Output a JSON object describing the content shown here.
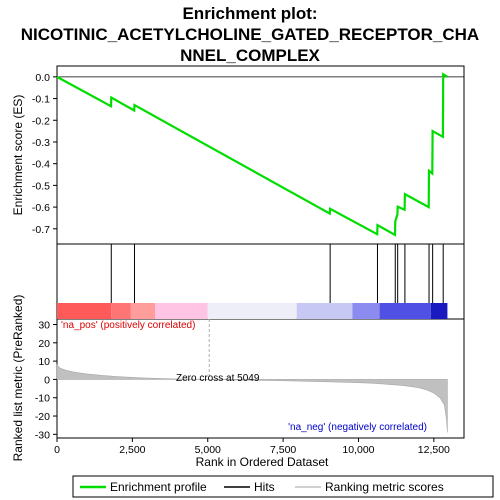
{
  "chart_data": {
    "type": "line",
    "title_lines": [
      "Enrichment plot:",
      "NICOTINIC_ACETYLCHOLINE_GATED_RECEPTOR_CHA",
      "NNEL_COMPLEX"
    ],
    "xlabel": "Rank in Ordered Dataset",
    "xlim": [
      0,
      13500
    ],
    "x_ticks": [
      0,
      2500,
      5000,
      7500,
      10000,
      12500
    ],
    "x_tick_labels": [
      "0",
      "2,500",
      "5,000",
      "7,500",
      "10,000",
      "12,500"
    ],
    "es_panel": {
      "ylabel": "Enrichment score (ES)",
      "ylim": [
        -0.77,
        0.05
      ],
      "y_ticks": [
        0.0,
        -0.1,
        -0.2,
        -0.3,
        -0.4,
        -0.5,
        -0.6,
        -0.7
      ],
      "y_tick_labels": [
        "0.0",
        "-0.1",
        "-0.2",
        "-0.3",
        "-0.4",
        "-0.5",
        "-0.6",
        "-0.7"
      ],
      "series_color": "#00dd00",
      "points": [
        [
          0,
          0.0
        ],
        [
          1790,
          -0.135
        ],
        [
          1800,
          -0.095
        ],
        [
          2560,
          -0.155
        ],
        [
          2570,
          -0.13
        ],
        [
          9050,
          -0.63
        ],
        [
          9060,
          -0.608
        ],
        [
          10620,
          -0.725
        ],
        [
          10630,
          -0.683
        ],
        [
          11210,
          -0.728
        ],
        [
          11220,
          -0.665
        ],
        [
          11290,
          -0.635
        ],
        [
          11300,
          -0.598
        ],
        [
          11530,
          -0.612
        ],
        [
          11540,
          -0.54
        ],
        [
          12330,
          -0.6
        ],
        [
          12340,
          -0.433
        ],
        [
          12450,
          -0.445
        ],
        [
          12460,
          -0.25
        ],
        [
          12800,
          -0.276
        ],
        [
          12810,
          0.012
        ],
        [
          12950,
          0.0
        ]
      ]
    },
    "hits": [
      1800,
      2570,
      9060,
      10630,
      11220,
      11300,
      11540,
      12340,
      12460,
      12810
    ],
    "metric_panel": {
      "ylabel": "Ranked list metric (PreRanked)",
      "ylim": [
        -32,
        33
      ],
      "y_ticks": [
        30,
        20,
        10,
        0,
        -10,
        -20,
        -30
      ],
      "y_tick_labels": [
        "30",
        "20",
        "10",
        "0",
        "-10",
        "-20",
        "-30"
      ],
      "fill_color": "#c0c0c0",
      "points": [
        [
          0,
          8.0
        ],
        [
          100,
          6.2
        ],
        [
          300,
          5.0
        ],
        [
          600,
          3.9
        ],
        [
          1000,
          3.0
        ],
        [
          1500,
          2.2
        ],
        [
          2000,
          1.6
        ],
        [
          2500,
          1.1
        ],
        [
          3000,
          0.7
        ],
        [
          3500,
          0.45
        ],
        [
          4000,
          0.25
        ],
        [
          4500,
          0.1
        ],
        [
          5049,
          0.0
        ],
        [
          6000,
          -0.3
        ],
        [
          7000,
          -0.6
        ],
        [
          8000,
          -0.9
        ],
        [
          9000,
          -1.3
        ],
        [
          10000,
          -1.8
        ],
        [
          10500,
          -2.1
        ],
        [
          11000,
          -2.7
        ],
        [
          11500,
          -3.4
        ],
        [
          12000,
          -4.5
        ],
        [
          12300,
          -6.0
        ],
        [
          12500,
          -7.5
        ],
        [
          12700,
          -10.0
        ],
        [
          12850,
          -14.0
        ],
        [
          12920,
          -22.0
        ],
        [
          12950,
          -29.0
        ]
      ],
      "zero_cross_label": "Zero cross at 5049",
      "zero_cross_x": 5049,
      "pos_label": "'na_pos' (positively correlated)",
      "pos_color": "#dd0000",
      "neg_label": "'na_neg' (negatively correlated)",
      "neg_color": "#0000cc"
    },
    "color_bar": [
      {
        "from": 0,
        "to": 1800,
        "color": "#ff5a5a"
      },
      {
        "from": 1800,
        "to": 2450,
        "color": "#ff7474"
      },
      {
        "from": 2450,
        "to": 3250,
        "color": "#ff9c9c"
      },
      {
        "from": 3250,
        "to": 5000,
        "color": "#ffc4e4"
      },
      {
        "from": 5000,
        "to": 7950,
        "color": "#eeeef8"
      },
      {
        "from": 7950,
        "to": 9800,
        "color": "#c8c8f4"
      },
      {
        "from": 9800,
        "to": 10700,
        "color": "#8c8cf0"
      },
      {
        "from": 10700,
        "to": 12400,
        "color": "#5050e4"
      },
      {
        "from": 12400,
        "to": 12950,
        "color": "#1a1ac0"
      }
    ],
    "legend": {
      "placement": "bottom",
      "entries": [
        {
          "label": "Enrichment profile",
          "color": "#00dd00"
        },
        {
          "label": "Hits",
          "color": "#000000"
        },
        {
          "label": "Ranking metric scores",
          "color": "#c0c0c0"
        }
      ]
    }
  }
}
